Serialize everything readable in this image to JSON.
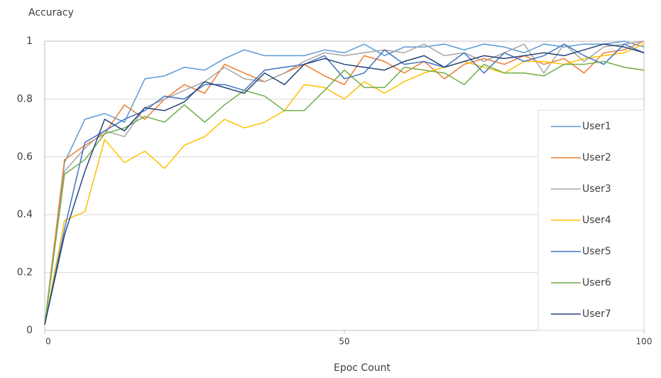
{
  "chart_data": {
    "type": "line",
    "y_label": "Accuracy",
    "x_label": "Epoc Count",
    "x": [
      0,
      3.3,
      6.7,
      10,
      13.3,
      16.7,
      20,
      23.3,
      26.7,
      30,
      33.3,
      36.7,
      40,
      43.3,
      46.7,
      50,
      53.3,
      56.7,
      60,
      63.3,
      66.7,
      70,
      73.3,
      76.7,
      80,
      83.3,
      86.7,
      90,
      93.3,
      96.7,
      100
    ],
    "xlim": [
      0,
      100
    ],
    "xticks": [
      0,
      50,
      100
    ],
    "ylim": [
      0,
      1
    ],
    "yticks": [
      0,
      0.2,
      0.4,
      0.6,
      0.8,
      1
    ],
    "grid": true,
    "legend": "right",
    "series": [
      {
        "name": "User1",
        "color": "#5b9bd5",
        "values": [
          0.02,
          0.58,
          0.73,
          0.75,
          0.72,
          0.87,
          0.88,
          0.91,
          0.9,
          0.94,
          0.97,
          0.95,
          0.95,
          0.95,
          0.97,
          0.96,
          0.99,
          0.95,
          0.98,
          0.98,
          0.99,
          0.97,
          0.99,
          0.98,
          0.96,
          0.99,
          0.98,
          0.99,
          0.99,
          1.0,
          0.98
        ]
      },
      {
        "name": "User2",
        "color": "#ed7d31",
        "values": [
          0.02,
          0.59,
          0.64,
          0.68,
          0.78,
          0.73,
          0.8,
          0.85,
          0.82,
          0.92,
          0.89,
          0.86,
          0.89,
          0.92,
          0.88,
          0.85,
          0.95,
          0.93,
          0.89,
          0.93,
          0.87,
          0.92,
          0.94,
          0.92,
          0.95,
          0.92,
          0.94,
          0.89,
          0.96,
          0.97,
          1.0
        ]
      },
      {
        "name": "User3",
        "color": "#a5a5a5",
        "values": [
          0.02,
          0.55,
          0.63,
          0.69,
          0.67,
          0.77,
          0.8,
          0.83,
          0.86,
          0.91,
          0.87,
          0.86,
          0.89,
          0.93,
          0.96,
          0.95,
          0.96,
          0.97,
          0.96,
          0.99,
          0.95,
          0.96,
          0.93,
          0.96,
          0.99,
          0.89,
          0.99,
          0.93,
          0.98,
          0.99,
          1.0
        ]
      },
      {
        "name": "User4",
        "color": "#ffc000",
        "values": [
          0.02,
          0.38,
          0.41,
          0.66,
          0.58,
          0.62,
          0.56,
          0.64,
          0.67,
          0.73,
          0.7,
          0.72,
          0.76,
          0.85,
          0.84,
          0.8,
          0.86,
          0.82,
          0.86,
          0.89,
          0.91,
          0.93,
          0.91,
          0.89,
          0.93,
          0.93,
          0.92,
          0.94,
          0.95,
          0.96,
          0.99
        ]
      },
      {
        "name": "User5",
        "color": "#4472c4",
        "values": [
          0.02,
          0.35,
          0.65,
          0.69,
          0.73,
          0.76,
          0.81,
          0.8,
          0.85,
          0.85,
          0.83,
          0.9,
          0.91,
          0.92,
          0.95,
          0.87,
          0.89,
          0.97,
          0.92,
          0.93,
          0.91,
          0.96,
          0.89,
          0.96,
          0.93,
          0.95,
          0.99,
          0.95,
          0.92,
          0.99,
          0.96
        ]
      },
      {
        "name": "User6",
        "color": "#70ad47",
        "values": [
          0.02,
          0.54,
          0.59,
          0.68,
          0.7,
          0.74,
          0.72,
          0.78,
          0.72,
          0.78,
          0.83,
          0.81,
          0.76,
          0.76,
          0.83,
          0.9,
          0.84,
          0.84,
          0.91,
          0.9,
          0.89,
          0.85,
          0.92,
          0.89,
          0.89,
          0.88,
          0.92,
          0.92,
          0.93,
          0.91,
          0.9
        ]
      },
      {
        "name": "User7",
        "color": "#264478",
        "values": [
          0.02,
          0.33,
          0.55,
          0.73,
          0.69,
          0.77,
          0.76,
          0.79,
          0.86,
          0.84,
          0.82,
          0.89,
          0.85,
          0.92,
          0.94,
          0.92,
          0.91,
          0.9,
          0.93,
          0.95,
          0.91,
          0.93,
          0.95,
          0.94,
          0.95,
          0.96,
          0.95,
          0.97,
          0.99,
          0.98,
          0.96
        ]
      }
    ]
  }
}
